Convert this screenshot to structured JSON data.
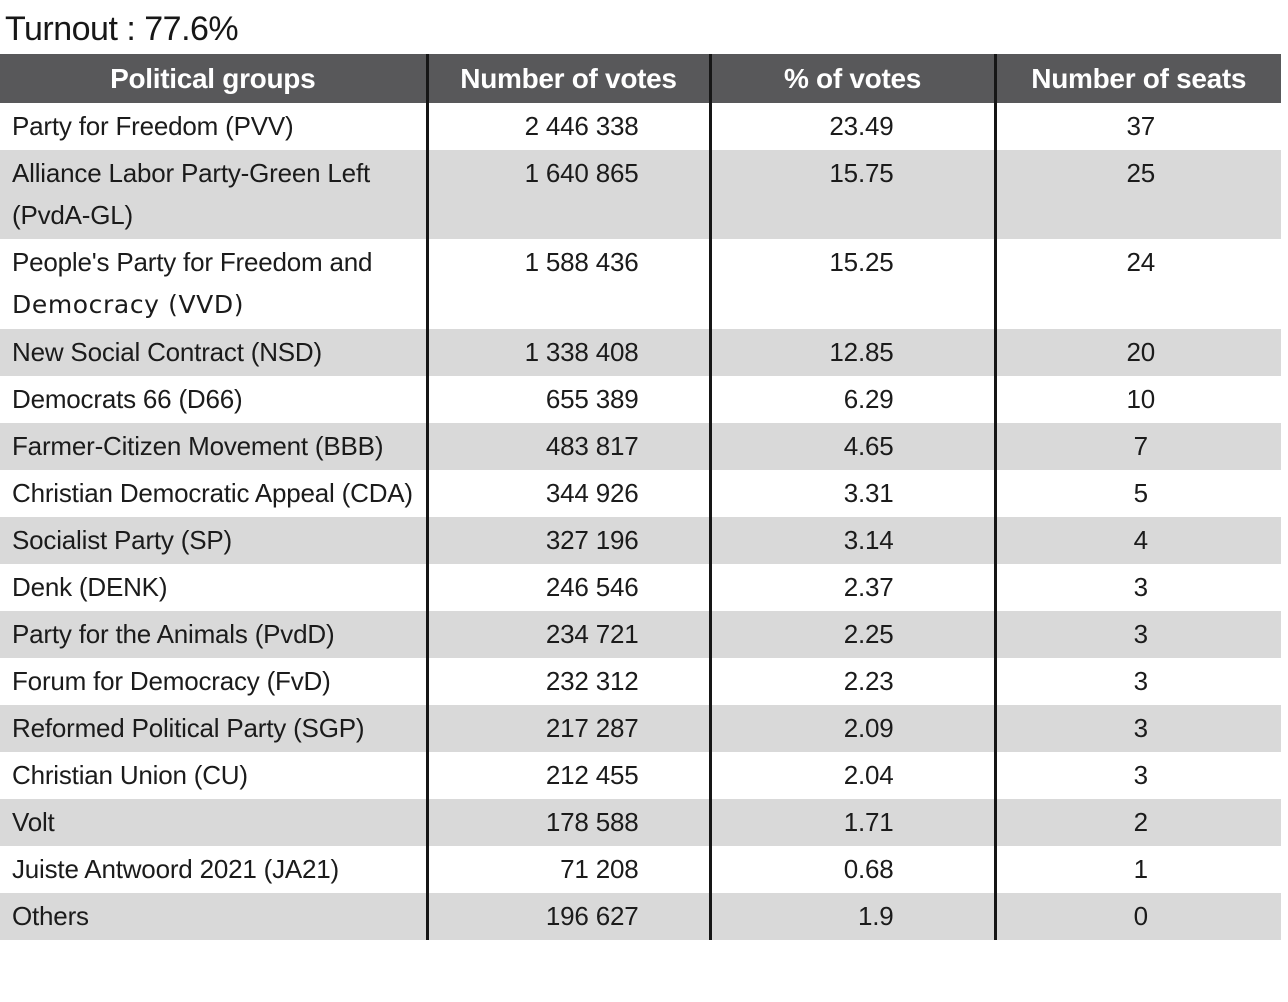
{
  "title": "Turnout : 77.6%",
  "colors": {
    "header_bg": "#58585a",
    "header_text": "#ffffff",
    "stripe_gray": "#d9d9d9",
    "grid_line": "#161616",
    "body_text": "#1b1b1b"
  },
  "table": {
    "columns": [
      "Political groups",
      "Number of votes",
      "% of votes",
      "Number of seats"
    ],
    "rows": [
      {
        "group": "Party for Freedom (PVV)",
        "votes": "2 446 338",
        "pct": "23.49",
        "seats": "37"
      },
      {
        "group": "Alliance Labor Party-Green Left (PvdA-GL)",
        "votes": "1 640 865",
        "pct": "15.75",
        "seats": "25"
      },
      {
        "group": "People's Party for Freedom and",
        "group_alt": "Democracy (VVD)",
        "votes": "1 588 436",
        "pct": "15.25",
        "seats": "24"
      },
      {
        "group": "New Social Contract (NSD)",
        "votes": "1 338 408",
        "pct": "12.85",
        "seats": "20"
      },
      {
        "group": "Democrats 66 (D66)",
        "votes": "655 389",
        "pct": "6.29",
        "seats": "10"
      },
      {
        "group": "Farmer-Citizen Movement (BBB)",
        "votes": "483 817",
        "pct": "4.65",
        "seats": "7"
      },
      {
        "group": "Christian Democratic Appeal (CDA)",
        "votes": "344 926",
        "pct": "3.31",
        "seats": "5"
      },
      {
        "group": "Socialist Party (SP)",
        "votes": "327 196",
        "pct": "3.14",
        "seats": "4"
      },
      {
        "group": "Denk (DENK)",
        "votes": "246 546",
        "pct": "2.37",
        "seats": "3"
      },
      {
        "group": "Party for the Animals (PvdD)",
        "votes": "234 721",
        "pct": "2.25",
        "seats": "3"
      },
      {
        "group": "Forum for Democracy (FvD)",
        "votes": "232 312",
        "pct": "2.23",
        "seats": "3"
      },
      {
        "group": "Reformed Political Party (SGP)",
        "votes": "217 287",
        "pct": "2.09",
        "seats": "3"
      },
      {
        "group": "Christian Union (CU)",
        "votes": "212 455",
        "pct": "2.04",
        "seats": "3"
      },
      {
        "group": "Volt",
        "votes": "178 588",
        "pct": "1.71",
        "seats": "2"
      },
      {
        "group": "Juiste Antwoord 2021 (JA21)",
        "votes": "71 208",
        "pct": "0.68",
        "seats": "1"
      },
      {
        "group": "Others",
        "votes": "196 627",
        "pct": "1.9",
        "seats": "0"
      }
    ]
  },
  "chart_data": {
    "type": "table",
    "title": "Turnout : 77.6%",
    "columns": [
      "Political groups",
      "Number of votes",
      "% of votes",
      "Number of seats"
    ],
    "categories": [
      "Party for Freedom (PVV)",
      "Alliance Labor Party-Green Left (PvdA-GL)",
      "People's Party for Freedom and Democracy (VVD)",
      "New Social Contract (NSD)",
      "Democrats 66 (D66)",
      "Farmer-Citizen Movement (BBB)",
      "Christian Democratic Appeal (CDA)",
      "Socialist Party (SP)",
      "Denk (DENK)",
      "Party for the Animals (PvdD)",
      "Forum for Democracy (FvD)",
      "Reformed Political Party (SGP)",
      "Christian Union (CU)",
      "Volt",
      "Juiste Antwoord 2021 (JA21)",
      "Others"
    ],
    "series": [
      {
        "name": "Number of votes",
        "values": [
          2446338,
          1640865,
          1588436,
          1338408,
          655389,
          483817,
          344926,
          327196,
          246546,
          234721,
          232312,
          217287,
          212455,
          178588,
          71208,
          196627
        ]
      },
      {
        "name": "% of votes",
        "values": [
          23.49,
          15.75,
          15.25,
          12.85,
          6.29,
          4.65,
          3.31,
          3.14,
          2.37,
          2.25,
          2.23,
          2.09,
          2.04,
          1.71,
          0.68,
          1.9
        ]
      },
      {
        "name": "Number of seats",
        "values": [
          37,
          25,
          24,
          20,
          10,
          7,
          5,
          4,
          3,
          3,
          3,
          3,
          3,
          2,
          1,
          0
        ]
      }
    ],
    "turnout_pct": 77.6,
    "layout": "striped rows, dark header band, 3 vertical black column separators, no horizontal row lines"
  }
}
